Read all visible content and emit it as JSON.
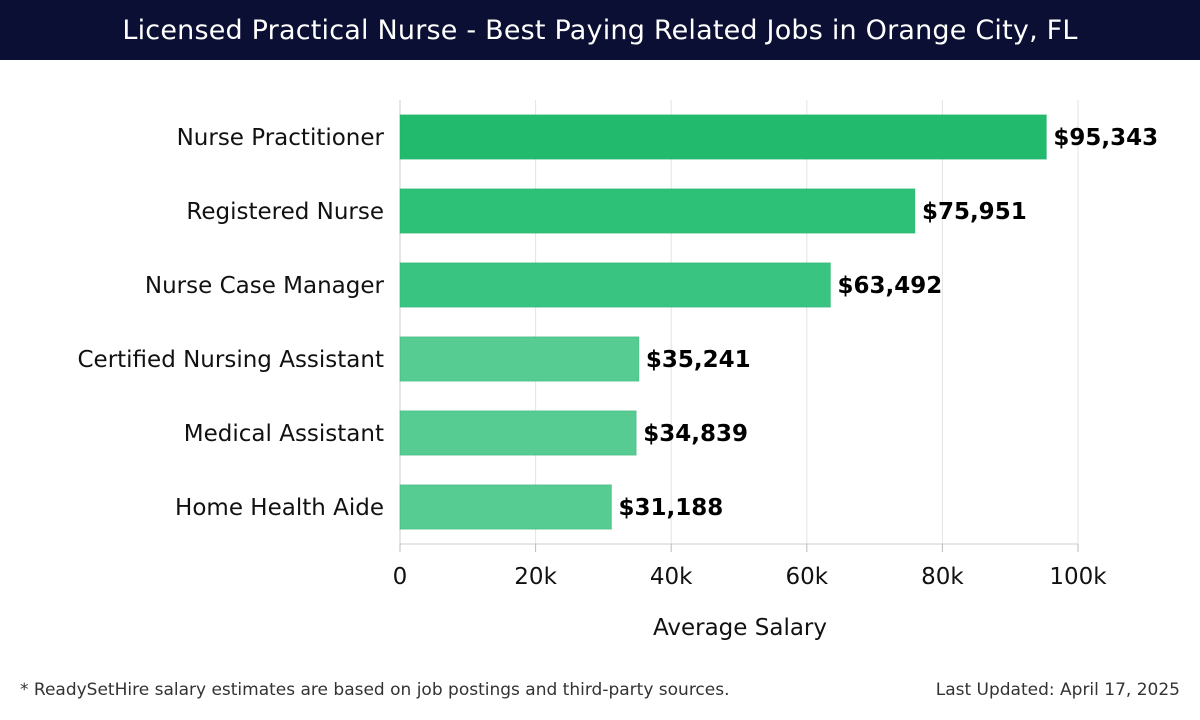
{
  "header": {
    "title": "Licensed Practical Nurse - Best Paying Related Jobs in Orange City, FL"
  },
  "chart_data": {
    "type": "bar",
    "orientation": "horizontal",
    "categories": [
      "Nurse Practitioner",
      "Registered Nurse",
      "Nurse Case Manager",
      "Certified Nursing Assistant",
      "Medical Assistant",
      "Home Health Aide"
    ],
    "values": [
      95343,
      75951,
      63492,
      35241,
      34839,
      31188
    ],
    "data_labels": [
      "$95,343",
      "$75,951",
      "$63,492",
      "$35,241",
      "$34,839",
      "$31,188"
    ],
    "xlabel": "Average Salary",
    "ylabel": "",
    "xlim": [
      0,
      100000
    ],
    "x_ticks": [
      0,
      20000,
      40000,
      60000,
      80000,
      100000
    ],
    "x_tick_labels": [
      "0",
      "20k",
      "40k",
      "60k",
      "80k",
      "100k"
    ],
    "grid": true,
    "bar_colors": [
      "#22bb6e",
      "#2dc077",
      "#3ac482",
      "#56cb92",
      "#56cb92",
      "#56cb92"
    ]
  },
  "footer": {
    "note": "* ReadySetHire salary estimates are based on job postings and third-party sources.",
    "updated": "Last Updated: April 17, 2025"
  }
}
